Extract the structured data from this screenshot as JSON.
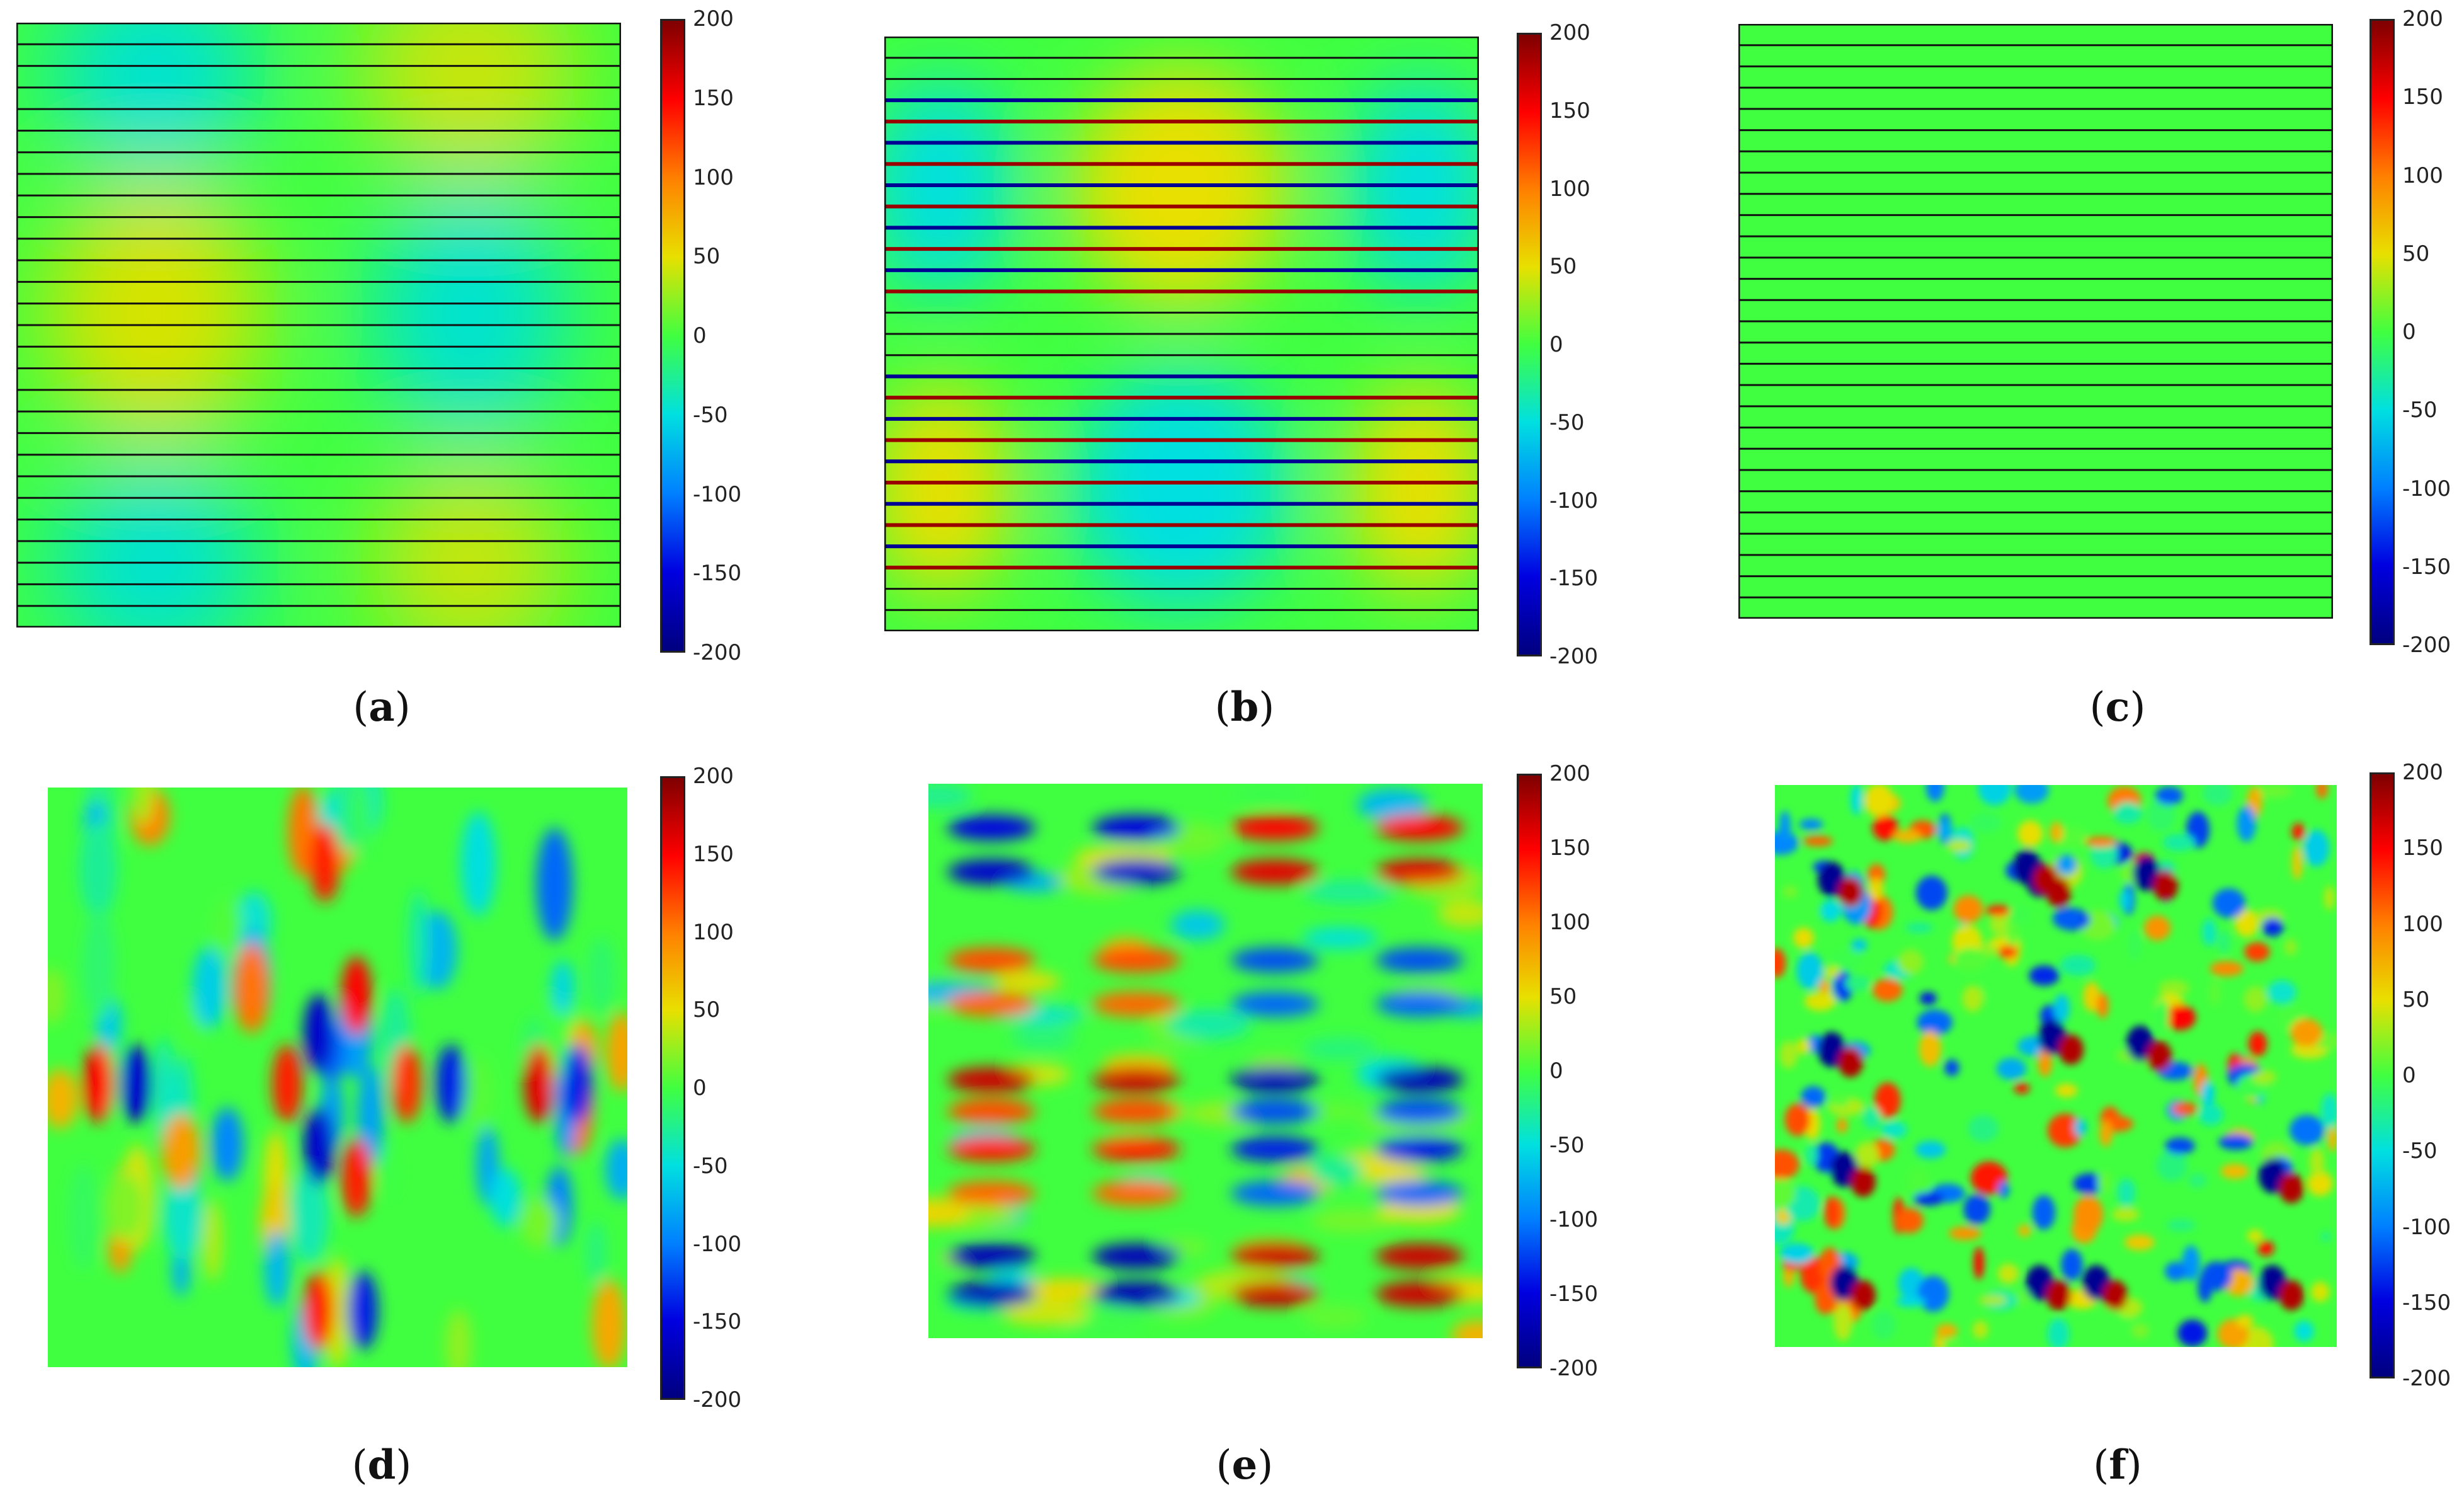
{
  "figure": {
    "colorbar_ticks": [
      "200",
      "150",
      "100",
      "50",
      "0",
      "-50",
      "-100",
      "-150",
      "-200"
    ],
    "colormap": [
      "#7f0000",
      "#ff0000",
      "#ff8000",
      "#e8e000",
      "#40ff40",
      "#00e0e0",
      "#0080ff",
      "#0000e0",
      "#00007f"
    ]
  },
  "chart_data": [
    {
      "type": "heatmap",
      "label": "a",
      "caption_open": "(",
      "caption_letter": "a",
      "caption_close": ")",
      "vmin": -200,
      "vmax": 200,
      "layers": 28,
      "pattern": "smooth checkerboard of two lobes, values about -50 to +50"
    },
    {
      "type": "heatmap",
      "label": "b",
      "caption_open": "(",
      "caption_letter": "b",
      "caption_close": ")",
      "vmin": -200,
      "vmax": 200,
      "layers": 28,
      "pattern": "checkerboard lobes with high-magnitude thin interlayer bands up to about ±200"
    },
    {
      "type": "heatmap",
      "label": "c",
      "caption_open": "(",
      "caption_letter": "c",
      "caption_close": ")",
      "vmin": -200,
      "vmax": 200,
      "layers": 28,
      "pattern": "uniform field near 0"
    },
    {
      "type": "heatmap",
      "label": "d",
      "caption_open": "(",
      "caption_letter": "d",
      "caption_close": ")",
      "vmin": -200,
      "vmax": 200,
      "pattern": "vertical elongated positive/negative spots"
    },
    {
      "type": "heatmap",
      "label": "e",
      "caption_open": "(",
      "caption_letter": "e",
      "caption_close": ")",
      "vmin": -200,
      "vmax": 200,
      "pattern": "horizontal elongated spots in rows"
    },
    {
      "type": "heatmap",
      "label": "f",
      "caption_open": "(",
      "caption_letter": "f",
      "caption_close": ")",
      "vmin": -200,
      "vmax": 200,
      "pattern": "scattered small irregular spots"
    }
  ]
}
